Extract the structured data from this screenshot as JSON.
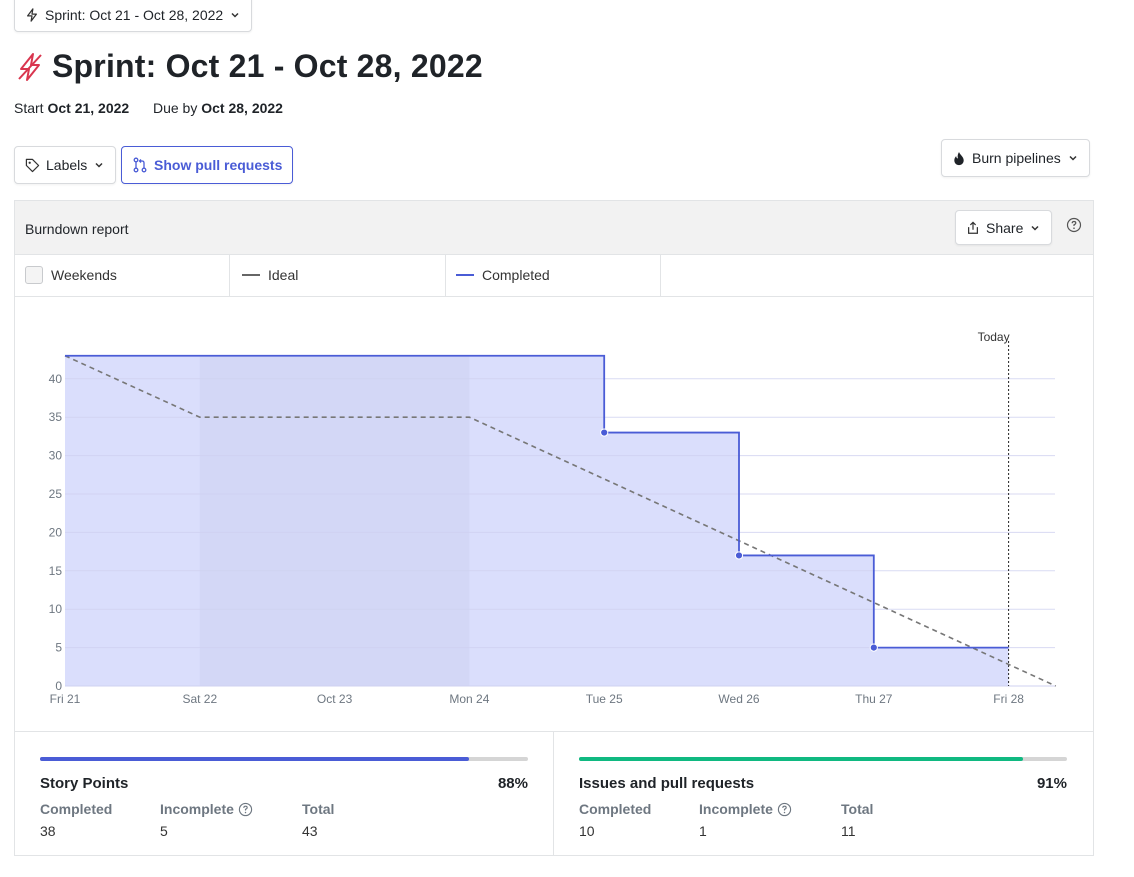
{
  "sprint_select": {
    "label": "Sprint: Oct 21 - Oct 28, 2022"
  },
  "header": {
    "title": "Sprint: Oct 21 - Oct 28, 2022",
    "start_label": "Start",
    "start_date": "Oct 21, 2022",
    "due_label": "Due by",
    "due_date": "Oct 28, 2022"
  },
  "toolbar": {
    "labels": "Labels",
    "show_pull_requests": "Show pull requests",
    "burn_pipelines": "Burn pipelines"
  },
  "report": {
    "title": "Burndown report",
    "share": "Share",
    "legend": {
      "weekends": "Weekends",
      "ideal": "Ideal",
      "completed": "Completed"
    }
  },
  "colors": {
    "accent": "#4a5cd6",
    "fill": "#dadefc",
    "weekend": "#d0d4f4",
    "ideal": "#777777",
    "green": "#10b981",
    "sprint_icon": "#d9364f"
  },
  "chart_data": {
    "type": "area",
    "categories": [
      "Fri 21",
      "Sat 22",
      "Oct 23",
      "Mon 24",
      "Tue 25",
      "Wed 26",
      "Thu 27",
      "Fri 28"
    ],
    "ylim": [
      0,
      45
    ],
    "yticks": [
      0,
      5,
      10,
      15,
      20,
      25,
      30,
      35,
      40
    ],
    "today_label": "Today",
    "weekend_range": [
      "Sat 22",
      "Mon 24"
    ],
    "series": [
      {
        "name": "Ideal",
        "style": "dashed",
        "points": [
          [
            0,
            43
          ],
          [
            1,
            35
          ],
          [
            3,
            35
          ],
          [
            7.35,
            0
          ]
        ]
      },
      {
        "name": "Completed",
        "style": "step",
        "points": [
          [
            0,
            43
          ],
          [
            4,
            43
          ],
          [
            4,
            33
          ],
          [
            5,
            33
          ],
          [
            5,
            17
          ],
          [
            6,
            17
          ],
          [
            6,
            5
          ],
          [
            7,
            5
          ]
        ],
        "markers": [
          [
            4,
            33
          ],
          [
            5,
            17
          ],
          [
            6,
            5
          ]
        ]
      }
    ],
    "today_index": 7
  },
  "stats": {
    "story_points": {
      "title": "Story Points",
      "percent": "88%",
      "progress": 0.88,
      "completed_label": "Completed",
      "completed": "38",
      "incomplete_label": "Incomplete",
      "incomplete": "5",
      "total_label": "Total",
      "total": "43"
    },
    "issues": {
      "title": "Issues and pull requests",
      "percent": "91%",
      "progress": 0.91,
      "completed_label": "Completed",
      "completed": "10",
      "incomplete_label": "Incomplete",
      "incomplete": "1",
      "total_label": "Total",
      "total": "11"
    }
  }
}
